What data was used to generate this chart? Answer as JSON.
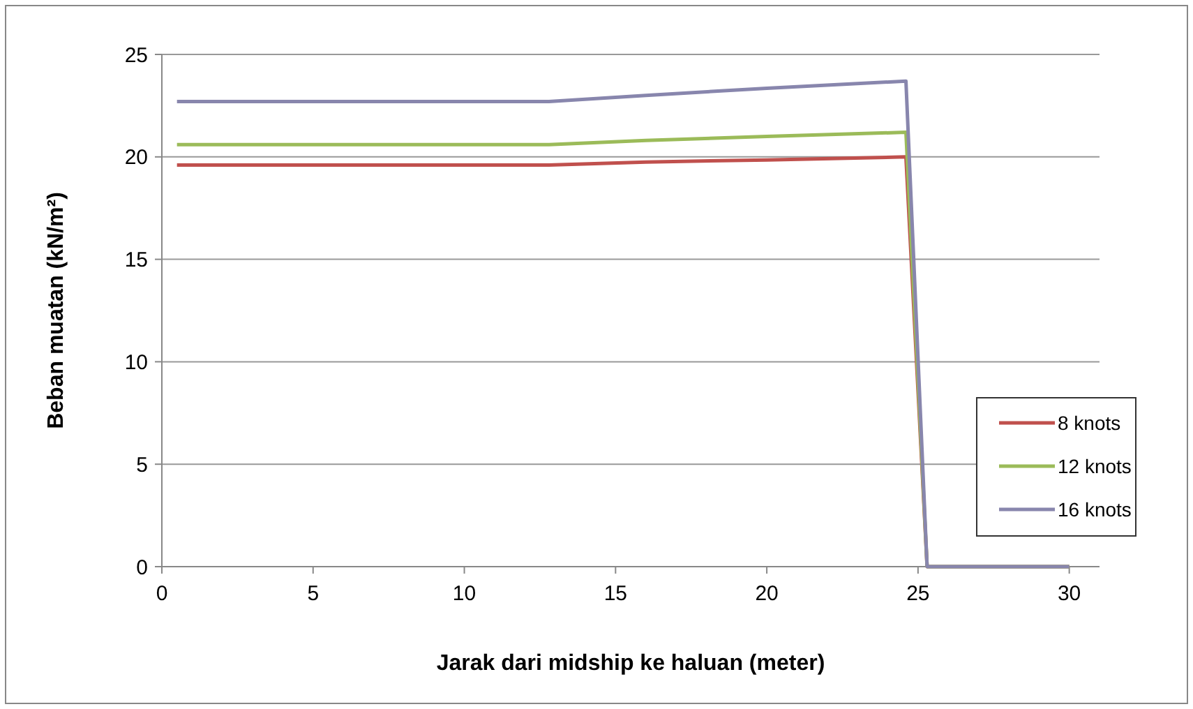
{
  "chart_data": {
    "type": "line",
    "xlabel": "Jarak dari midship ke haluan (meter)",
    "ylabel": "Beban muatan (kN/m²)",
    "x": [
      0.5,
      12.8,
      16,
      20,
      24.6,
      25.3,
      30
    ],
    "series": [
      {
        "name": "8 knots",
        "color": "#c0504d",
        "values": [
          19.6,
          19.6,
          19.75,
          19.85,
          20.0,
          0,
          0
        ]
      },
      {
        "name": "12 knots",
        "color": "#9bbb59",
        "values": [
          20.6,
          20.6,
          20.8,
          21.0,
          21.2,
          0,
          0
        ]
      },
      {
        "name": "16 knots",
        "color": "#8886ad",
        "values": [
          22.7,
          22.7,
          23.0,
          23.35,
          23.7,
          0,
          0
        ]
      }
    ],
    "xlim": [
      0,
      31
    ],
    "xticks": [
      0,
      5,
      10,
      15,
      20,
      25,
      30
    ],
    "ylim": [
      0,
      25
    ],
    "yticks": [
      0,
      5,
      10,
      15,
      20,
      25
    ],
    "grid": "y",
    "legend": "right",
    "marker": "none",
    "line_style": "solid"
  }
}
